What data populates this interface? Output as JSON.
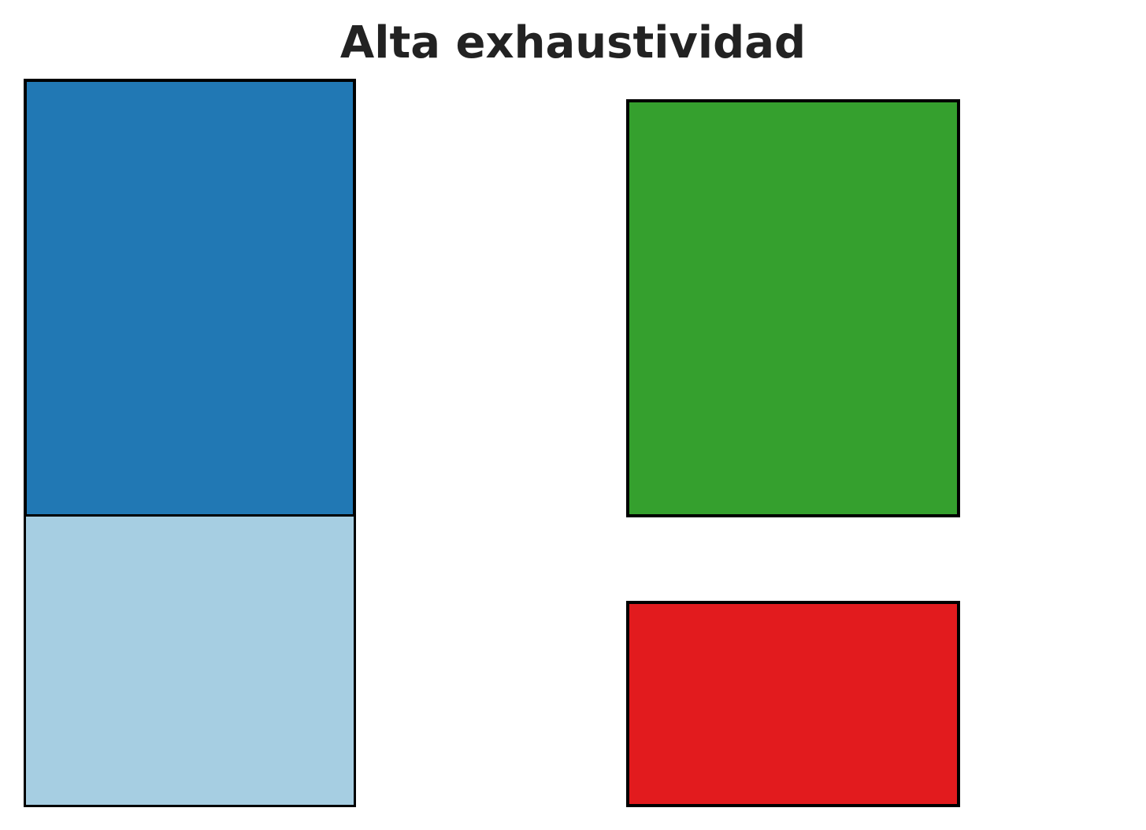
{
  "title": "Alta exhaustividad",
  "boxes": {
    "blue_dark": {
      "color": "#2178b4"
    },
    "blue_light": {
      "color": "#a6cee2"
    },
    "green": {
      "color": "#35a02e"
    },
    "red": {
      "color": "#e21b1e"
    }
  }
}
